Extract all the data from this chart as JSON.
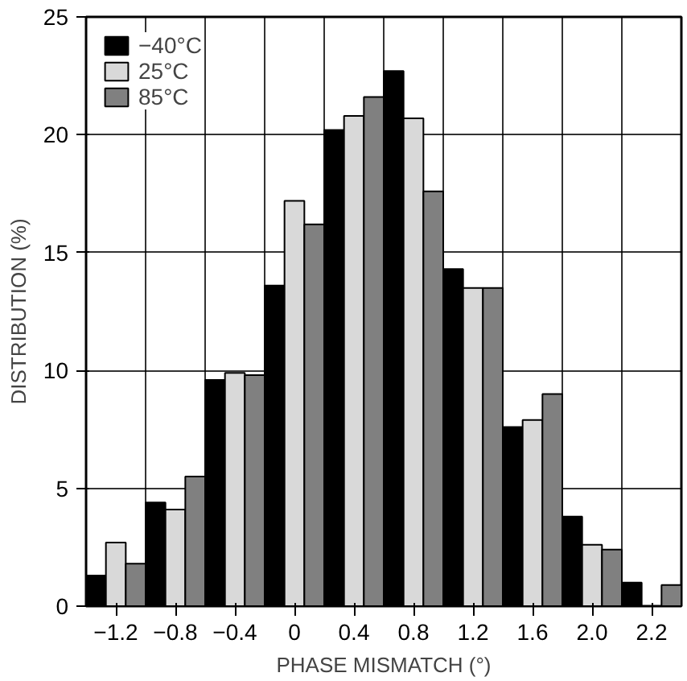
{
  "chart_data": {
    "type": "bar",
    "xlabel": "PHASE MISMATCH (°)",
    "ylabel": "DISTRIBUTION (%)",
    "categories": [
      "−1.2",
      "−0.8",
      "−0.4",
      "0",
      "0.4",
      "0.8",
      "1.2",
      "1.6",
      "2.0",
      "2.2"
    ],
    "series": [
      {
        "name": "−40°C",
        "color": "#000000",
        "values": [
          1.3,
          4.4,
          9.6,
          13.6,
          20.2,
          22.7,
          14.3,
          7.6,
          3.8,
          1.0
        ]
      },
      {
        "name": "25°C",
        "color": "#d9d9d9",
        "values": [
          2.7,
          4.1,
          9.9,
          17.2,
          20.8,
          20.7,
          13.5,
          7.9,
          2.6,
          null
        ]
      },
      {
        "name": "85°C",
        "color": "#808080",
        "values": [
          1.8,
          5.5,
          9.8,
          16.2,
          21.6,
          17.6,
          13.5,
          9.0,
          2.4,
          0.9
        ]
      }
    ],
    "ylim": [
      0,
      25
    ],
    "yticks": [
      0,
      5,
      10,
      15,
      20,
      25
    ],
    "grid": true,
    "legend": "top left"
  }
}
